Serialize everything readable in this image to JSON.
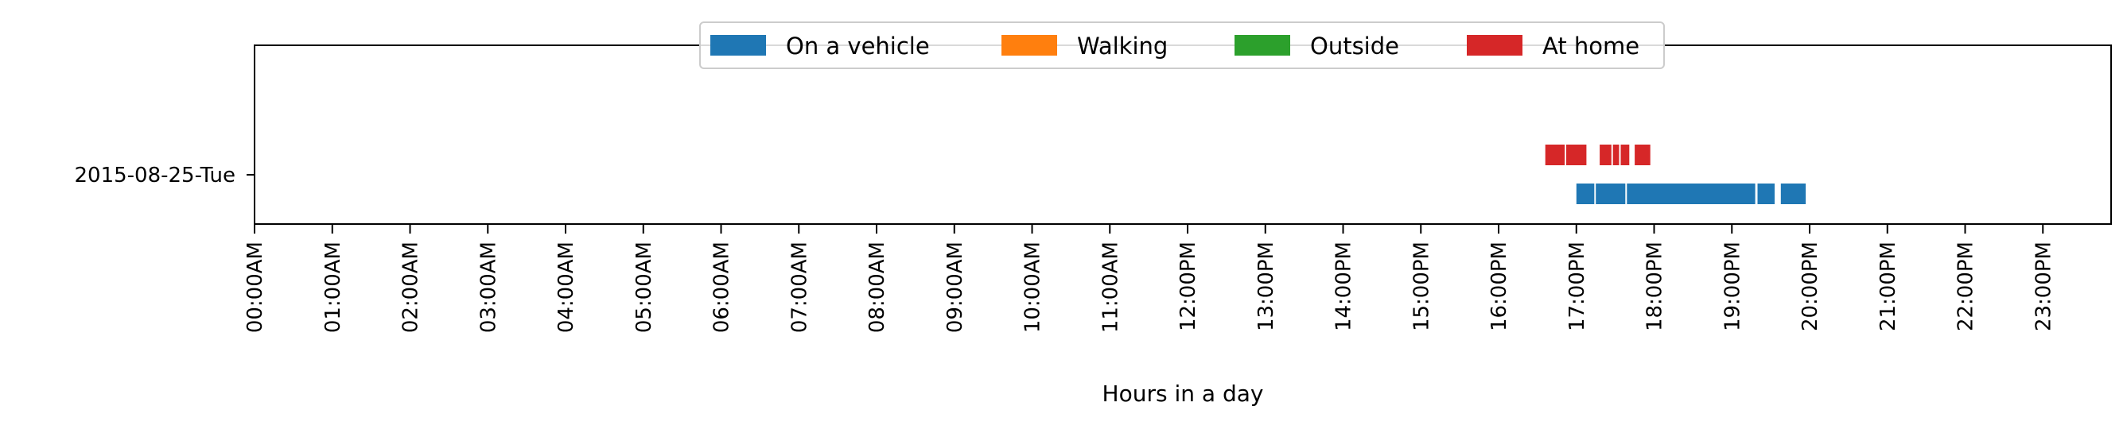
{
  "chart_data": {
    "type": "timeline",
    "title": "",
    "xlabel": "Hours in a day",
    "ylabel": "",
    "xlim": [
      0,
      24
    ],
    "x_ticks": [
      "00:00AM",
      "01:00AM",
      "02:00AM",
      "03:00AM",
      "04:00AM",
      "05:00AM",
      "06:00AM",
      "07:00AM",
      "08:00AM",
      "09:00AM",
      "10:00AM",
      "11:00AM",
      "12:00PM",
      "13:00PM",
      "14:00PM",
      "15:00PM",
      "16:00PM",
      "17:00PM",
      "18:00PM",
      "19:00PM",
      "20:00PM",
      "21:00PM",
      "22:00PM",
      "23:00PM"
    ],
    "rows": [
      "2015-08-25-Tue"
    ],
    "grid": false,
    "legend_position": "top-center",
    "series": [
      {
        "name": "On a vehicle",
        "color": "#1f77b4",
        "intervals": [
          [
            17.0,
            17.23
          ],
          [
            17.25,
            17.63
          ],
          [
            17.65,
            19.3
          ],
          [
            19.33,
            19.55
          ],
          [
            19.63,
            19.95
          ]
        ]
      },
      {
        "name": "Walking",
        "color": "#ff7f0e",
        "intervals": []
      },
      {
        "name": "Outside",
        "color": "#2ca02c",
        "intervals": []
      },
      {
        "name": "At home",
        "color": "#d62728",
        "intervals": [
          [
            16.6,
            16.85
          ],
          [
            16.87,
            17.13
          ],
          [
            17.3,
            17.45
          ],
          [
            17.47,
            17.55
          ],
          [
            17.57,
            17.68
          ],
          [
            17.75,
            17.95
          ]
        ]
      }
    ]
  }
}
